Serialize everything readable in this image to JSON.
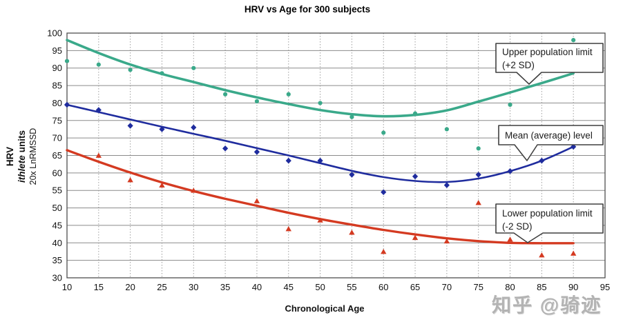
{
  "title": "HRV vs Age for 300 subjects",
  "x_axis": {
    "label": "Chronological Age"
  },
  "y_axis": {
    "label_line1": "HRV",
    "label_line2_italic": "ithlete",
    "label_line2_rest": "units",
    "label_line3": "20x LnRMSSD"
  },
  "callouts": [
    {
      "id": "upper",
      "line1": "Upper population limit",
      "line2": "(+2 SD)"
    },
    {
      "id": "mean",
      "line1": "Mean (average) level",
      "line2": ""
    },
    {
      "id": "lower",
      "line1": "Lower population limit",
      "line2": "(-2 SD)"
    }
  ],
  "watermark": "知乎 @骑迹",
  "colors": {
    "upper_series": "#3aa98a",
    "mean_series": "#1f2c9e",
    "lower_series": "#d43a21",
    "grid_vertical": "#9c9c9c",
    "grid_horizontal": "#8a8a8a",
    "plot_border": "#4d4d4d",
    "callout_border": "#3f3f3f",
    "text": "#111111"
  },
  "chart_data": {
    "type": "scatter",
    "title": "HRV vs Age for 300 subjects",
    "xlabel": "Chronological Age",
    "ylabel": "HRV  ithlete units  20x LnRMSSD",
    "xlim": [
      10,
      95
    ],
    "ylim": [
      30,
      100
    ],
    "x_ticks": [
      10,
      15,
      20,
      25,
      30,
      35,
      40,
      45,
      50,
      55,
      60,
      65,
      70,
      75,
      80,
      85,
      90,
      95
    ],
    "y_ticks": [
      30,
      35,
      40,
      45,
      50,
      55,
      60,
      65,
      70,
      75,
      80,
      85,
      90,
      95,
      100
    ],
    "grid": true,
    "legend_position": "callouts-on-plot",
    "series": [
      {
        "name": "Upper population limit (+2 SD)",
        "color": "#3aa98a",
        "marker": "circle",
        "points": [
          [
            10,
            92
          ],
          [
            15,
            91
          ],
          [
            20,
            89.5
          ],
          [
            25,
            88.5
          ],
          [
            30,
            90
          ],
          [
            35,
            82.5
          ],
          [
            40,
            80.5
          ],
          [
            45,
            82.5
          ],
          [
            50,
            80
          ],
          [
            55,
            76
          ],
          [
            60,
            71.5
          ],
          [
            65,
            77
          ],
          [
            70,
            72.5
          ],
          [
            75,
            67
          ],
          [
            80,
            79.5
          ],
          [
            90,
            98
          ]
        ],
        "trend": [
          [
            10,
            98
          ],
          [
            15,
            94.3
          ],
          [
            20,
            91
          ],
          [
            25,
            88.3
          ],
          [
            30,
            86
          ],
          [
            35,
            83.7
          ],
          [
            40,
            81.6
          ],
          [
            45,
            79.7
          ],
          [
            50,
            78
          ],
          [
            55,
            76.8
          ],
          [
            60,
            76.2
          ],
          [
            65,
            76.6
          ],
          [
            70,
            77.9
          ],
          [
            75,
            80.4
          ],
          [
            80,
            83
          ],
          [
            85,
            85.7
          ],
          [
            90,
            88.5
          ]
        ]
      },
      {
        "name": "Mean (average) level",
        "color": "#1f2c9e",
        "marker": "diamond",
        "points": [
          [
            10,
            79.5
          ],
          [
            15,
            78
          ],
          [
            20,
            73.5
          ],
          [
            25,
            72.5
          ],
          [
            30,
            73
          ],
          [
            35,
            67
          ],
          [
            40,
            66
          ],
          [
            45,
            63.5
          ],
          [
            50,
            63.5
          ],
          [
            55,
            59.5
          ],
          [
            60,
            54.5
          ],
          [
            65,
            59
          ],
          [
            70,
            56.5
          ],
          [
            75,
            59.5
          ],
          [
            80,
            60.5
          ],
          [
            85,
            63.5
          ],
          [
            90,
            67.5
          ]
        ],
        "trend": [
          [
            10,
            79.5
          ],
          [
            15,
            77.4
          ],
          [
            20,
            75.3
          ],
          [
            25,
            73.2
          ],
          [
            30,
            71.2
          ],
          [
            35,
            69.2
          ],
          [
            40,
            67.1
          ],
          [
            45,
            65
          ],
          [
            50,
            62.8
          ],
          [
            55,
            60.6
          ],
          [
            60,
            58.8
          ],
          [
            65,
            57.7
          ],
          [
            70,
            57.4
          ],
          [
            75,
            58.4
          ],
          [
            80,
            60.5
          ],
          [
            85,
            63.5
          ],
          [
            90,
            67.5
          ]
        ]
      },
      {
        "name": "Lower population limit (-2 SD)",
        "color": "#d43a21",
        "marker": "triangle",
        "points": [
          [
            15,
            65
          ],
          [
            20,
            58
          ],
          [
            25,
            56.5
          ],
          [
            30,
            55
          ],
          [
            40,
            52
          ],
          [
            45,
            44
          ],
          [
            50,
            46.5
          ],
          [
            55,
            43
          ],
          [
            60,
            37.5
          ],
          [
            65,
            41.5
          ],
          [
            70,
            40.5
          ],
          [
            75,
            51.5
          ],
          [
            80,
            41
          ],
          [
            85,
            36.5
          ],
          [
            90,
            37
          ]
        ],
        "trend": [
          [
            10,
            66.5
          ],
          [
            15,
            63.2
          ],
          [
            20,
            60.1
          ],
          [
            25,
            57.3
          ],
          [
            30,
            54.8
          ],
          [
            35,
            52.6
          ],
          [
            40,
            50.6
          ],
          [
            45,
            48.6
          ],
          [
            50,
            46.8
          ],
          [
            55,
            45.2
          ],
          [
            60,
            43.7
          ],
          [
            65,
            42.4
          ],
          [
            70,
            41.3
          ],
          [
            75,
            40.5
          ],
          [
            80,
            40
          ],
          [
            85,
            39.9
          ],
          [
            90,
            39.9
          ]
        ]
      }
    ]
  }
}
